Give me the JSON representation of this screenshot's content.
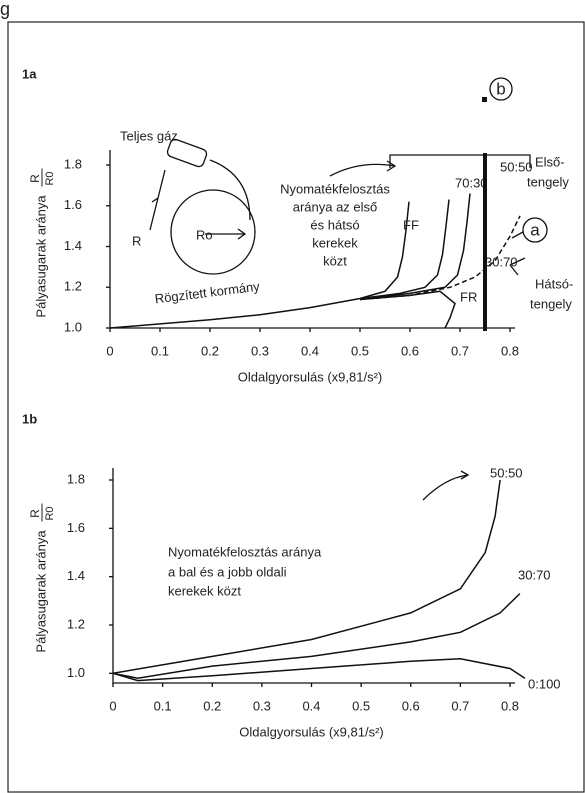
{
  "page_label": "g",
  "chart_data": [
    {
      "type": "line",
      "panel": "1a",
      "xlabel": "Oldalgyorsulás (x9,81/s²)",
      "ylabel": "Pályasugarak aránya",
      "ylabel_fraction": {
        "numerator": "R",
        "denominator": "R0"
      },
      "xlim": [
        0,
        0.8
      ],
      "ylim": [
        1,
        1.8
      ],
      "xticks": [
        0,
        0.1,
        0.2,
        0.3,
        0.4,
        0.5,
        0.6,
        0.7,
        0.8
      ],
      "yticks": [
        {
          "value": 1,
          "label": "1.0"
        },
        {
          "value": 1.2,
          "label": "1.2"
        },
        {
          "value": 1.4,
          "label": "1.4"
        },
        {
          "value": 1.6,
          "label": "1.6"
        },
        {
          "value": 1.8,
          "label": "1.8"
        }
      ],
      "series": [
        {
          "name": "FF",
          "color": "#111111",
          "dashed": false,
          "x": [
            0,
            0.1,
            0.2,
            0.3,
            0.4,
            0.5,
            0.55,
            0.575,
            0.585,
            0.592,
            0.598
          ],
          "values": [
            1.0,
            1.02,
            1.04,
            1.065,
            1.1,
            1.145,
            1.18,
            1.25,
            1.35,
            1.48,
            1.62
          ]
        },
        {
          "name": "70:30",
          "color": "#111111",
          "dashed": false,
          "x": [
            0.5,
            0.58,
            0.63,
            0.655,
            0.665,
            0.672,
            0.678
          ],
          "values": [
            1.145,
            1.17,
            1.2,
            1.26,
            1.36,
            1.5,
            1.63
          ]
        },
        {
          "name": "50:50",
          "color": "#111111",
          "dashed": false,
          "x": [
            0.5,
            0.6,
            0.67,
            0.695,
            0.707,
            0.714,
            0.72
          ],
          "values": [
            1.14,
            1.17,
            1.2,
            1.26,
            1.38,
            1.52,
            1.66
          ]
        },
        {
          "name": "30:70",
          "color": "#111111",
          "dashed": true,
          "x": [
            0.5,
            0.6,
            0.68,
            0.73,
            0.77,
            0.8,
            0.82
          ],
          "values": [
            1.14,
            1.16,
            1.2,
            1.25,
            1.33,
            1.45,
            1.55
          ]
        },
        {
          "name": "FR",
          "color": "#111111",
          "dashed": false,
          "x": [
            0.5,
            0.6,
            0.66,
            0.69,
            0.68,
            0.67
          ],
          "values": [
            1.14,
            1.16,
            1.18,
            1.12,
            1.05,
            1.0
          ]
        }
      ],
      "marker_line": {
        "x": 0.75,
        "label": "b"
      },
      "annotations": {
        "full_throttle": "Teljes gáz",
        "radius": "R",
        "radius0": "Ro",
        "torque_split": [
          "Nyomatékfelosztás",
          "aránya az első",
          "és hátsó",
          "kerekek",
          "közt"
        ],
        "fixed_steering": "Rögzített kormány",
        "front_axle": [
          "Első-",
          "tengely"
        ],
        "rear_axle": [
          "Hátsó-",
          "tengely"
        ],
        "circle_a": "a"
      }
    },
    {
      "type": "line",
      "panel": "1b",
      "xlabel": "Oldalgyorsulás (x9,81/s²)",
      "ylabel": "Pályasugarak aránya",
      "ylabel_fraction": {
        "numerator": "R",
        "denominator": "R0"
      },
      "xlim": [
        0,
        0.8
      ],
      "ylim": [
        0.96,
        1.8
      ],
      "xticks": [
        0,
        0.1,
        0.2,
        0.3,
        0.4,
        0.5,
        0.6,
        0.7,
        0.8
      ],
      "yticks": [
        {
          "value": 1,
          "label": "1.0"
        },
        {
          "value": 1.2,
          "label": "1.2"
        },
        {
          "value": 1.4,
          "label": "1.4"
        },
        {
          "value": 1.6,
          "label": "1.6"
        },
        {
          "value": 1.8,
          "label": "1.8"
        }
      ],
      "series": [
        {
          "name": "50:50",
          "color": "#111111",
          "dashed": false,
          "x": [
            0,
            0.2,
            0.4,
            0.6,
            0.7,
            0.75,
            0.77,
            0.78
          ],
          "values": [
            1.0,
            1.07,
            1.14,
            1.25,
            1.35,
            1.5,
            1.65,
            1.8
          ]
        },
        {
          "name": "30:70",
          "color": "#111111",
          "dashed": false,
          "x": [
            0,
            0.05,
            0.2,
            0.4,
            0.6,
            0.7,
            0.78,
            0.82
          ],
          "values": [
            1.0,
            0.98,
            1.03,
            1.07,
            1.13,
            1.17,
            1.25,
            1.33
          ]
        },
        {
          "name": "0:100",
          "color": "#111111",
          "dashed": false,
          "x": [
            0,
            0.05,
            0.2,
            0.4,
            0.6,
            0.7,
            0.8,
            0.83
          ],
          "values": [
            1.0,
            0.97,
            0.99,
            1.02,
            1.05,
            1.06,
            1.02,
            0.98
          ]
        }
      ],
      "annotations": {
        "torque_split": [
          "Nyomatékfelosztás aránya",
          "a bal és a jobb oldali",
          "kerekek közt"
        ]
      }
    }
  ]
}
